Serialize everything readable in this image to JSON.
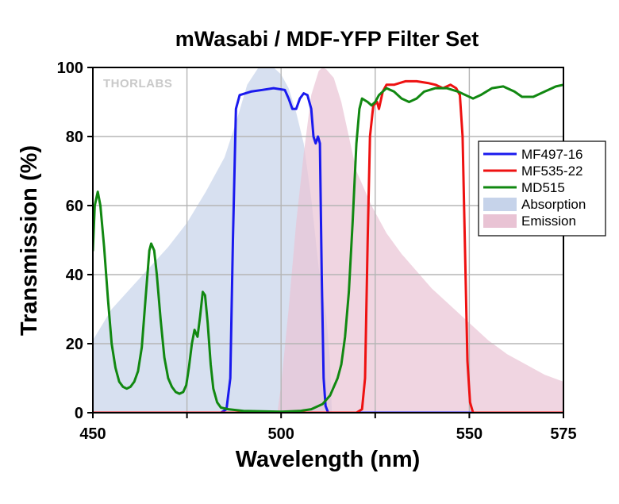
{
  "chart_data": {
    "type": "line",
    "title": "mWasabi / MDF-YFP Filter Set",
    "xlabel": "Wavelength (nm)",
    "ylabel": "Transmission (%)",
    "xlim": [
      450,
      575
    ],
    "ylim": [
      0,
      100
    ],
    "x_ticks": [
      450,
      500,
      550,
      575
    ],
    "x_gridlines": [
      450,
      475,
      500,
      525,
      550,
      575
    ],
    "y_ticks": [
      0,
      20,
      40,
      60,
      80,
      100
    ],
    "grid": true,
    "legend_position": "right",
    "watermark": "THORLABS",
    "series": [
      {
        "name": "MF497-16",
        "kind": "line",
        "color": "#1a1aee",
        "points": [
          [
            450,
            0
          ],
          [
            484,
            0
          ],
          [
            485.5,
            1
          ],
          [
            486.5,
            10
          ],
          [
            487.2,
            50
          ],
          [
            488,
            88
          ],
          [
            489,
            92
          ],
          [
            492,
            93
          ],
          [
            495,
            93.5
          ],
          [
            498,
            94
          ],
          [
            501,
            93.5
          ],
          [
            502,
            91
          ],
          [
            503,
            88
          ],
          [
            504,
            88
          ],
          [
            505,
            91
          ],
          [
            506,
            92.5
          ],
          [
            507,
            92
          ],
          [
            508,
            88
          ],
          [
            508.6,
            80
          ],
          [
            509.2,
            78
          ],
          [
            509.8,
            80
          ],
          [
            510.3,
            78
          ],
          [
            510.8,
            40
          ],
          [
            511.3,
            10
          ],
          [
            511.8,
            2
          ],
          [
            512.5,
            0
          ],
          [
            575,
            0
          ]
        ]
      },
      {
        "name": "MF535-22",
        "kind": "line",
        "color": "#ee1111",
        "points": [
          [
            450,
            0
          ],
          [
            520,
            0
          ],
          [
            521.5,
            1
          ],
          [
            522.3,
            10
          ],
          [
            523,
            50
          ],
          [
            523.6,
            80
          ],
          [
            524.5,
            89
          ],
          [
            525.5,
            90
          ],
          [
            526,
            88
          ],
          [
            527,
            93
          ],
          [
            528,
            95
          ],
          [
            530,
            95
          ],
          [
            533,
            96
          ],
          [
            536,
            96
          ],
          [
            539,
            95.5
          ],
          [
            541,
            95
          ],
          [
            543,
            94
          ],
          [
            545,
            95
          ],
          [
            546.5,
            94
          ],
          [
            547.5,
            92
          ],
          [
            548.2,
            80
          ],
          [
            548.8,
            50
          ],
          [
            549.5,
            15
          ],
          [
            550.2,
            3
          ],
          [
            551,
            0
          ],
          [
            575,
            0
          ]
        ]
      },
      {
        "name": "MD515",
        "kind": "line",
        "color": "#118811",
        "points": [
          [
            450,
            47
          ],
          [
            450.5,
            60
          ],
          [
            451.3,
            64
          ],
          [
            452,
            60
          ],
          [
            453,
            48
          ],
          [
            454,
            33
          ],
          [
            455,
            20
          ],
          [
            456,
            13
          ],
          [
            457,
            9
          ],
          [
            458,
            7.5
          ],
          [
            459,
            7
          ],
          [
            460,
            7.5
          ],
          [
            461,
            9
          ],
          [
            462,
            12
          ],
          [
            463,
            19
          ],
          [
            464,
            33
          ],
          [
            465,
            47
          ],
          [
            465.5,
            49
          ],
          [
            466.3,
            47
          ],
          [
            467,
            40
          ],
          [
            468,
            27
          ],
          [
            469,
            16
          ],
          [
            470,
            10
          ],
          [
            471,
            7.5
          ],
          [
            472,
            6
          ],
          [
            473,
            5.5
          ],
          [
            474,
            6
          ],
          [
            474.8,
            8
          ],
          [
            475.5,
            13
          ],
          [
            476.3,
            20
          ],
          [
            477,
            24
          ],
          [
            477.8,
            22
          ],
          [
            478.5,
            28
          ],
          [
            479.2,
            35
          ],
          [
            479.8,
            34
          ],
          [
            480.5,
            26
          ],
          [
            481.3,
            14
          ],
          [
            482,
            7
          ],
          [
            483,
            3
          ],
          [
            484,
            1.5
          ],
          [
            486,
            1
          ],
          [
            490,
            0.5
          ],
          [
            500,
            0.3
          ],
          [
            505,
            0.5
          ],
          [
            508,
            1
          ],
          [
            511,
            2.5
          ],
          [
            513,
            5
          ],
          [
            515,
            10
          ],
          [
            516,
            14
          ],
          [
            517,
            22
          ],
          [
            518,
            35
          ],
          [
            519,
            55
          ],
          [
            520,
            78
          ],
          [
            520.8,
            88
          ],
          [
            521.5,
            91
          ],
          [
            523,
            90
          ],
          [
            524,
            89
          ],
          [
            525,
            90
          ],
          [
            526,
            92
          ],
          [
            528,
            94
          ],
          [
            530,
            93
          ],
          [
            532,
            91
          ],
          [
            534,
            90
          ],
          [
            536,
            91
          ],
          [
            538,
            93
          ],
          [
            541,
            94
          ],
          [
            544,
            94
          ],
          [
            547,
            93
          ],
          [
            549,
            92
          ],
          [
            551,
            91
          ],
          [
            553,
            92
          ],
          [
            556,
            94
          ],
          [
            559,
            94.5
          ],
          [
            562,
            93
          ],
          [
            564,
            91.5
          ],
          [
            567,
            91.5
          ],
          [
            570,
            93
          ],
          [
            573,
            94.5
          ],
          [
            575,
            95
          ]
        ]
      },
      {
        "name": "Absorption",
        "kind": "area",
        "color": "#c6d3ea",
        "points": [
          [
            450,
            21
          ],
          [
            455,
            30
          ],
          [
            460,
            36
          ],
          [
            465,
            42
          ],
          [
            470,
            48
          ],
          [
            475,
            55
          ],
          [
            480,
            64
          ],
          [
            485,
            74
          ],
          [
            488,
            84
          ],
          [
            491,
            95
          ],
          [
            494,
            100
          ],
          [
            497,
            101
          ],
          [
            500,
            98
          ],
          [
            502,
            94
          ],
          [
            504,
            87
          ],
          [
            506,
            78
          ],
          [
            508,
            62
          ],
          [
            510,
            42
          ],
          [
            512,
            28
          ],
          [
            513,
            15
          ],
          [
            513.5,
            0
          ]
        ]
      },
      {
        "name": "Emission",
        "kind": "area",
        "color": "#e9c3d4",
        "points": [
          [
            499,
            0
          ],
          [
            500,
            8
          ],
          [
            502,
            30
          ],
          [
            504,
            55
          ],
          [
            506,
            75
          ],
          [
            508,
            92
          ],
          [
            510,
            99
          ],
          [
            511,
            100
          ],
          [
            512,
            99.5
          ],
          [
            514,
            97
          ],
          [
            516,
            90
          ],
          [
            518,
            80
          ],
          [
            520,
            70
          ],
          [
            524,
            60
          ],
          [
            528,
            52
          ],
          [
            532,
            46
          ],
          [
            536,
            41
          ],
          [
            540,
            36
          ],
          [
            545,
            31
          ],
          [
            550,
            26
          ],
          [
            555,
            21
          ],
          [
            560,
            17
          ],
          [
            565,
            14
          ],
          [
            570,
            11
          ],
          [
            575,
            9
          ],
          [
            575,
            0
          ]
        ]
      }
    ]
  }
}
